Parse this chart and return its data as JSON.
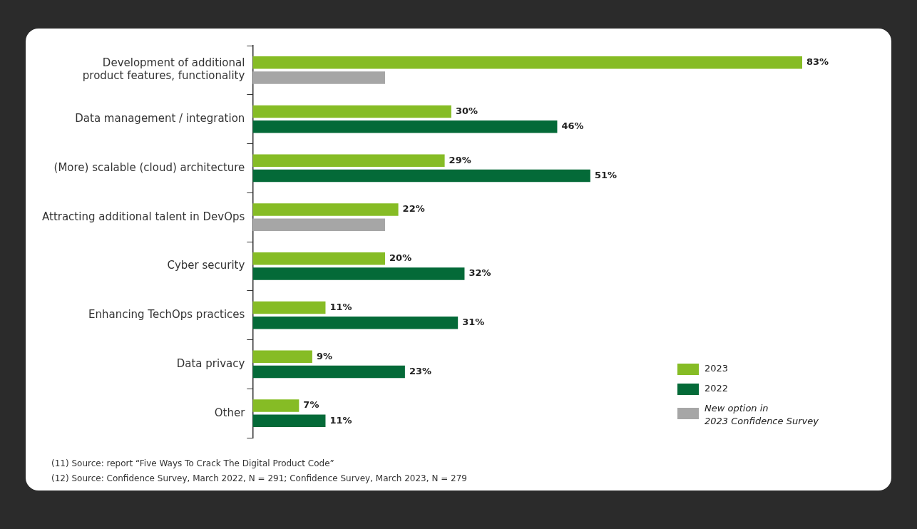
{
  "chart_data": {
    "type": "bar",
    "orientation": "horizontal",
    "categories": [
      "Development of additional product features, functionality",
      "Data management / integration",
      "(More) scalable (cloud) architecture",
      "Attracting additional talent in DevOps",
      "Cyber security",
      "Enhancing TechOps practices",
      "Data privacy",
      "Other"
    ],
    "series": [
      {
        "name": "2023",
        "color": "#86bc25",
        "values": [
          83,
          30,
          29,
          22,
          20,
          11,
          9,
          7
        ],
        "value_labels": [
          "83%",
          "30%",
          "29%",
          "22%",
          "20%",
          "11%",
          "9%",
          "7%"
        ]
      },
      {
        "name": "2022",
        "color": "#046a38",
        "values": [
          null,
          46,
          51,
          null,
          32,
          31,
          23,
          11
        ],
        "value_labels": [
          null,
          "46%",
          "51%",
          null,
          "32%",
          "31%",
          "23%",
          "11%"
        ]
      },
      {
        "name": "New option in 2023 Confidence Survey",
        "color": "#a6a6a6",
        "values": [
          20,
          null,
          null,
          20,
          null,
          null,
          null,
          null
        ]
      }
    ],
    "legend": "bottom right",
    "annotations": [
      "(11) Source: report “Five Ways To Crack The Digital Product Code”",
      "(12) Source: Confidence Survey, March 2022, N = 291; Confidence Survey, March 2023, N = 279"
    ]
  }
}
